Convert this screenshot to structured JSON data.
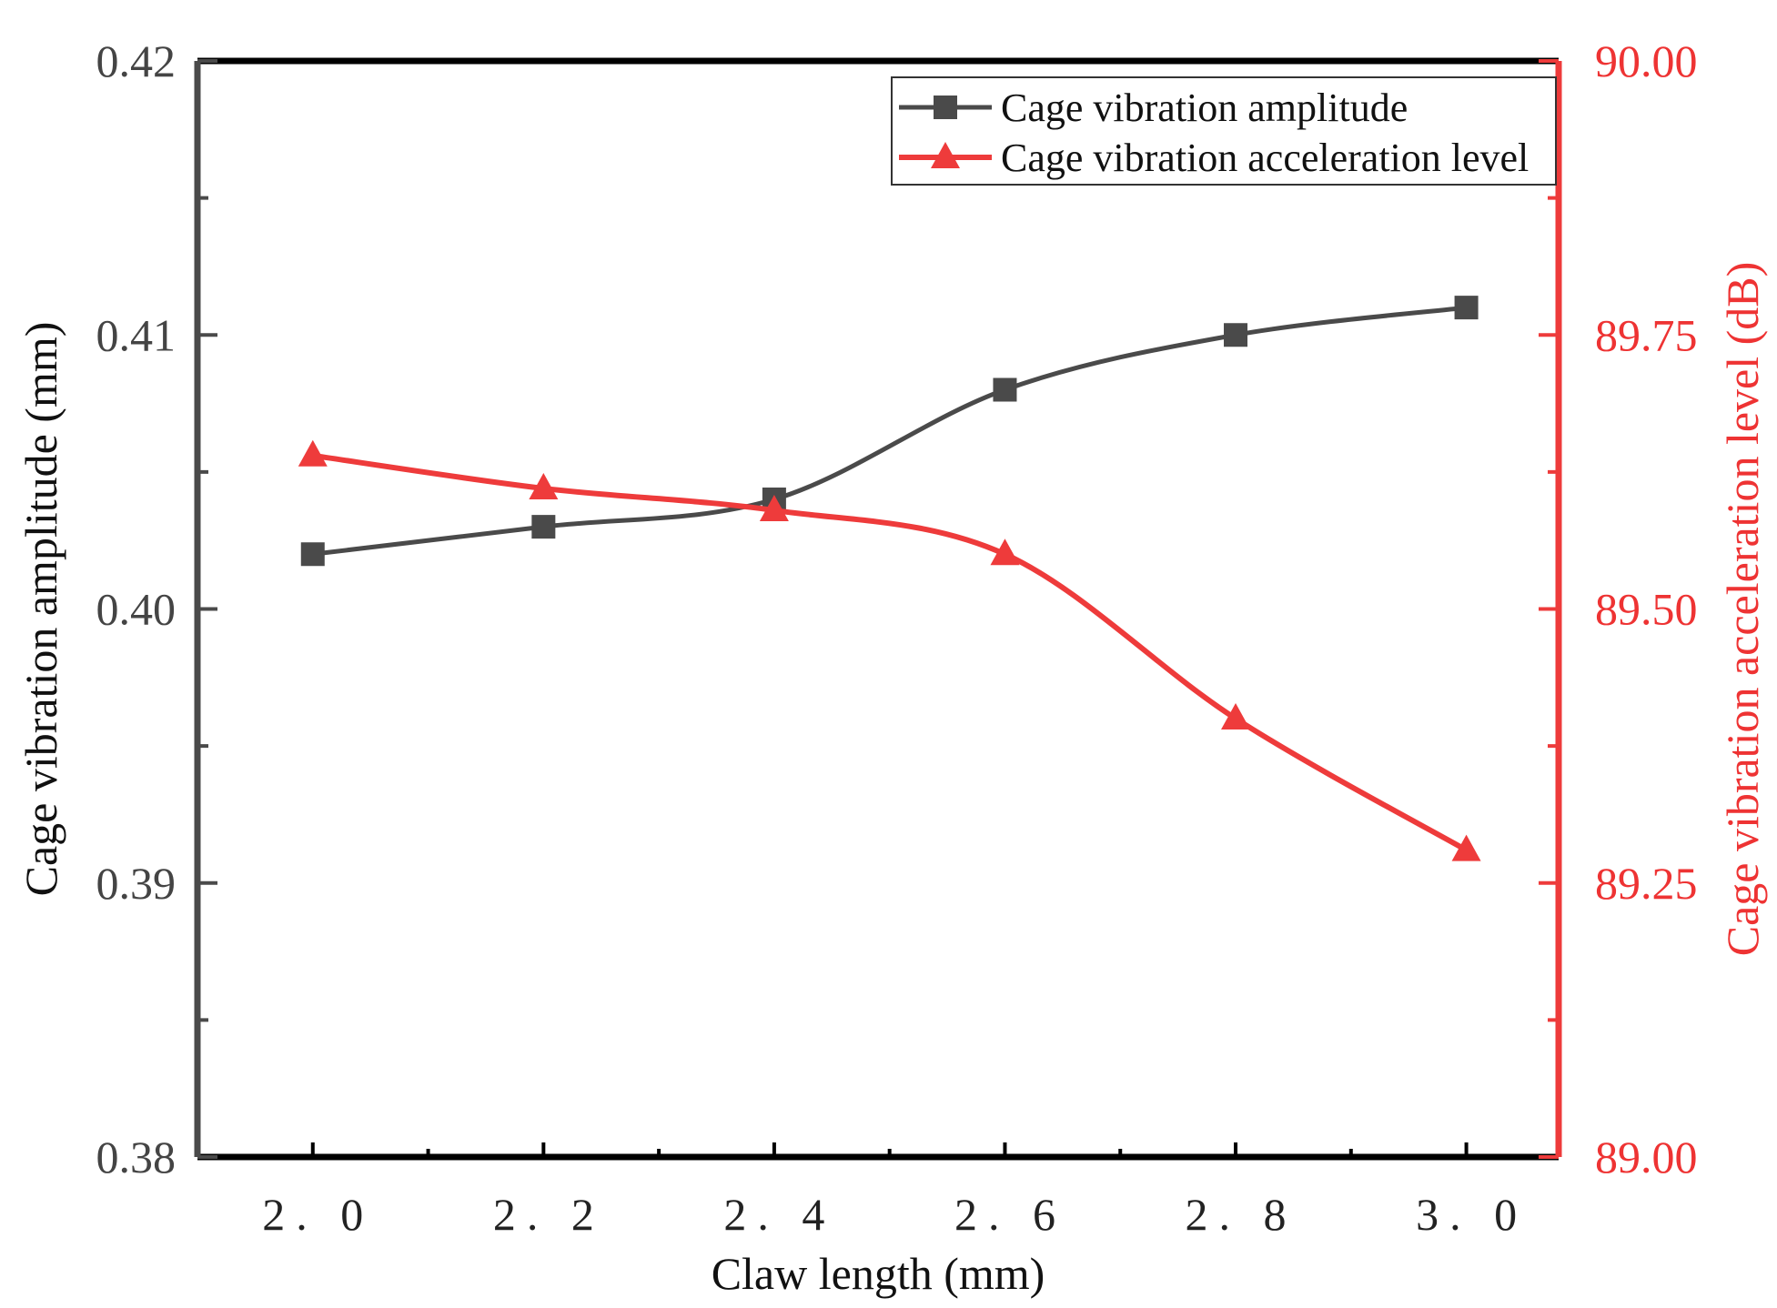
{
  "chart_data": {
    "type": "line",
    "title": "",
    "xlabel": "Claw length (mm)",
    "ylabel_left": "Cage vibration amplitude (mm)",
    "ylabel_right": "Cage vibration acceleration level (dB)",
    "x": [
      2.0,
      2.2,
      2.4,
      2.6,
      2.8,
      3.0
    ],
    "x_tick_labels": [
      "2. 0",
      "2. 2",
      "2. 4",
      "2. 6",
      "2. 8",
      "3. 0"
    ],
    "x_range": [
      1.9,
      3.08
    ],
    "y_left": {
      "range": [
        0.38,
        0.42
      ],
      "ticks": [
        0.38,
        0.39,
        0.4,
        0.41,
        0.42
      ],
      "tick_labels": [
        "0.38",
        "0.39",
        "0.40",
        "0.41",
        "0.42"
      ]
    },
    "y_right": {
      "range": [
        89.0,
        90.0
      ],
      "ticks": [
        89.0,
        89.25,
        89.5,
        89.75,
        90.0
      ],
      "tick_labels": [
        "89.00",
        "89.25",
        "89.50",
        "89.75",
        "90.00"
      ]
    },
    "series": [
      {
        "name": "Cage vibration amplitude",
        "axis": "left",
        "marker": "square",
        "color": "#4a4a4a",
        "values": [
          0.402,
          0.403,
          0.404,
          0.408,
          0.41,
          0.411
        ]
      },
      {
        "name": "Cage vibration acceleration level",
        "axis": "right",
        "marker": "triangle",
        "color": "#ee3b3b",
        "values": [
          89.64,
          89.61,
          89.59,
          89.55,
          89.4,
          89.28
        ]
      }
    ],
    "legend_position": "top-right",
    "grid": false
  }
}
